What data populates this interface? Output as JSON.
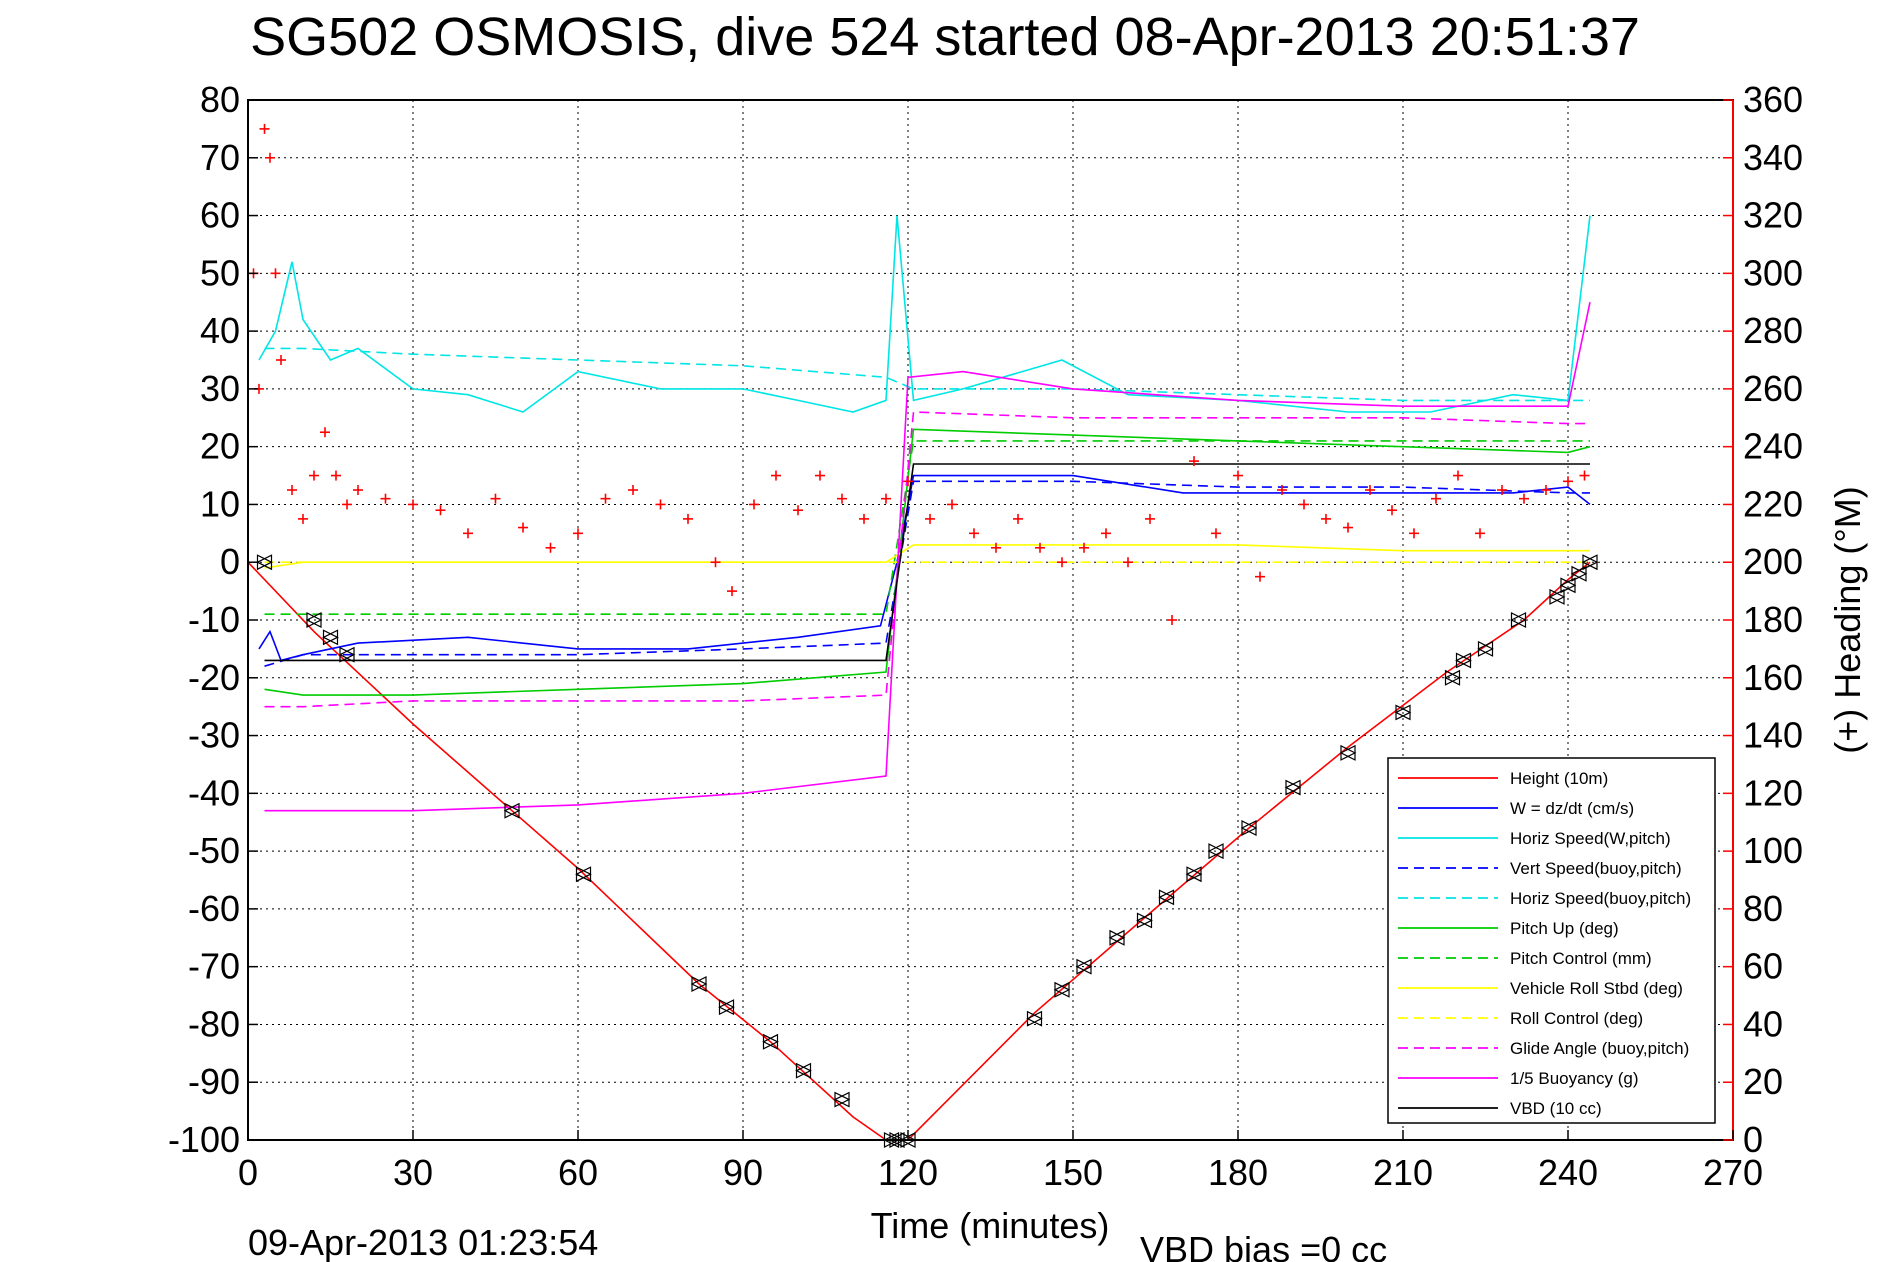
{
  "chart_data": {
    "type": "line",
    "title": "SG502 OSMOSIS, dive 524 started 08-Apr-2013 20:51:37",
    "xlabel": "Time (minutes)",
    "ylabel_right": "(+) Heading (°M)",
    "footer_left": "09-Apr-2013 01:23:54",
    "footer_right": "VBD bias =0 cc",
    "xlim": [
      0,
      270
    ],
    "ylim": [
      -100,
      80
    ],
    "ylim_right": [
      0,
      360
    ],
    "x_ticks": [
      "0",
      "30",
      "60",
      "90",
      "120",
      "150",
      "180",
      "210",
      "240",
      "270"
    ],
    "y_ticks": [
      "80",
      "70",
      "60",
      "50",
      "40",
      "30",
      "20",
      "10",
      "0",
      "-10",
      "-20",
      "-30",
      "-40",
      "-50",
      "-60",
      "-70",
      "-80",
      "-90",
      "-100"
    ],
    "y_ticks_right": [
      "360",
      "340",
      "320",
      "300",
      "280",
      "260",
      "240",
      "220",
      "200",
      "180",
      "160",
      "140",
      "120",
      "100",
      "80",
      "60",
      "40",
      "20",
      "0"
    ],
    "grid": true,
    "legend_position": "bottom-right",
    "colors": {
      "heading": "#ff0000",
      "right_axis": "#ff0000"
    },
    "series": [
      {
        "name": "Height (10m)",
        "color": "#ff0000",
        "dash": "solid",
        "x": [
          0,
          12,
          30,
          48,
          60,
          82,
          95,
          110,
          116,
          120,
          143,
          160,
          182,
          200,
          218,
          232,
          240,
          244
        ],
        "y": [
          0,
          -12,
          -28,
          -43,
          -53,
          -73,
          -83,
          -96,
          -100,
          -100,
          -78,
          -64,
          -46,
          -32,
          -19,
          -10,
          -3,
          0
        ]
      },
      {
        "name": "W = dz/dt (cm/s)",
        "color": "#0000ff",
        "dash": "solid",
        "x": [
          2,
          4,
          6,
          10,
          20,
          40,
          60,
          80,
          100,
          115,
          118,
          121,
          130,
          150,
          170,
          190,
          210,
          230,
          240,
          244
        ],
        "y": [
          -15,
          -12,
          -17,
          -16,
          -14,
          -13,
          -15,
          -15,
          -13,
          -11,
          0,
          15,
          15,
          15,
          12,
          12,
          12,
          12,
          13,
          10
        ]
      },
      {
        "name": "Horiz Speed(W,pitch)",
        "color": "#00e5e5",
        "dash": "solid",
        "x": [
          2,
          5,
          8,
          10,
          15,
          20,
          30,
          40,
          50,
          60,
          75,
          90,
          100,
          110,
          116,
          118,
          121,
          130,
          148,
          160,
          180,
          200,
          215,
          230,
          240,
          244
        ],
        "y": [
          35,
          40,
          52,
          42,
          35,
          37,
          30,
          29,
          26,
          33,
          30,
          30,
          28,
          26,
          28,
          60,
          28,
          30,
          35,
          29,
          28,
          26,
          26,
          29,
          28,
          60
        ]
      },
      {
        "name": "Vert Speed(buoy,pitch)",
        "color": "#0000ff",
        "dash": "dashed",
        "x": [
          3,
          10,
          30,
          60,
          90,
          116,
          121,
          150,
          180,
          210,
          240,
          244
        ],
        "y": [
          -18,
          -16,
          -16,
          -16,
          -15,
          -14,
          14,
          14,
          13,
          13,
          12,
          12
        ]
      },
      {
        "name": "Horiz Speed(buoy,pitch)",
        "color": "#00e5e5",
        "dash": "dashed",
        "x": [
          3,
          10,
          30,
          60,
          90,
          116,
          121,
          150,
          180,
          210,
          240,
          244
        ],
        "y": [
          37,
          37,
          36,
          35,
          34,
          32,
          30,
          30,
          29,
          28,
          28,
          28
        ]
      },
      {
        "name": "Pitch Up (deg)",
        "color": "#00cc00",
        "dash": "solid",
        "x": [
          3,
          10,
          30,
          60,
          90,
          116,
          121,
          150,
          180,
          210,
          240,
          244
        ],
        "y": [
          -22,
          -23,
          -23,
          -22,
          -21,
          -19,
          23,
          22,
          21,
          20,
          19,
          20
        ]
      },
      {
        "name": "Pitch Control (mm)",
        "color": "#00cc00",
        "dash": "dashed",
        "x": [
          3,
          116,
          121,
          244
        ],
        "y": [
          -9,
          -9,
          21,
          21
        ]
      },
      {
        "name": "Vehicle Roll Stbd (deg)",
        "color": "#ffff00",
        "dash": "solid",
        "x": [
          3,
          10,
          30,
          60,
          90,
          116,
          121,
          150,
          180,
          210,
          240,
          244
        ],
        "y": [
          -1,
          0,
          0,
          0,
          0,
          0,
          3,
          3,
          3,
          2,
          2,
          2
        ]
      },
      {
        "name": "Roll Control (deg)",
        "color": "#ffff00",
        "dash": "dashed",
        "x": [
          3,
          116,
          121,
          244
        ],
        "y": [
          0,
          0,
          0,
          0
        ]
      },
      {
        "name": "Glide Angle (buoy,pitch)",
        "color": "#ff00ff",
        "dash": "dashed",
        "x": [
          3,
          10,
          30,
          60,
          90,
          116,
          121,
          150,
          180,
          210,
          240,
          244
        ],
        "y": [
          -25,
          -25,
          -24,
          -24,
          -24,
          -23,
          26,
          25,
          25,
          25,
          24,
          24
        ]
      },
      {
        "name": "1/5 Buoyancy (g)",
        "color": "#ff00ff",
        "dash": "solid",
        "x": [
          3,
          30,
          60,
          90,
          116,
          120,
          130,
          150,
          180,
          210,
          240,
          244
        ],
        "y": [
          -43,
          -43,
          -42,
          -40,
          -37,
          32,
          33,
          30,
          28,
          27,
          27,
          45
        ]
      },
      {
        "name": "VBD (10 cc)",
        "color": "#000000",
        "dash": "solid",
        "x": [
          3,
          116,
          121,
          244
        ],
        "y": [
          -17,
          -17,
          17,
          17
        ]
      }
    ],
    "heading_series": {
      "name": "(+) Heading (°M)",
      "x": [
        1,
        2,
        3,
        4,
        5,
        6,
        8,
        10,
        12,
        14,
        16,
        18,
        20,
        25,
        30,
        35,
        40,
        45,
        50,
        55,
        60,
        65,
        70,
        75,
        80,
        85,
        88,
        92,
        96,
        100,
        104,
        108,
        112,
        116,
        120,
        124,
        128,
        132,
        136,
        140,
        144,
        148,
        152,
        156,
        160,
        164,
        168,
        172,
        176,
        180,
        184,
        188,
        192,
        196,
        200,
        204,
        208,
        212,
        216,
        220,
        224,
        228,
        232,
        236,
        240,
        243
      ],
      "y": [
        300,
        260,
        350,
        340,
        300,
        270,
        225,
        215,
        230,
        245,
        230,
        220,
        225,
        222,
        220,
        218,
        210,
        222,
        212,
        205,
        210,
        222,
        225,
        220,
        215,
        200,
        190,
        220,
        230,
        218,
        230,
        222,
        215,
        222,
        228,
        215,
        220,
        210,
        205,
        215,
        205,
        200,
        205,
        210,
        200,
        215,
        180,
        235,
        210,
        230,
        195,
        225,
        220,
        215,
        212,
        225,
        218,
        210,
        222,
        230,
        210,
        225,
        222,
        225,
        228,
        230
      ]
    },
    "markers": {
      "name": "Height samples",
      "x": [
        3,
        12,
        15,
        18,
        48,
        61,
        82,
        87,
        95,
        101,
        108,
        117,
        118,
        120,
        143,
        148,
        152,
        158,
        163,
        167,
        172,
        176,
        182,
        190,
        200,
        210,
        219,
        221,
        225,
        231,
        238,
        240,
        242,
        244
      ],
      "y": [
        0,
        -10,
        -13,
        -16,
        -43,
        -54,
        -73,
        -77,
        -83,
        -88,
        -93,
        -100,
        -100,
        -100,
        -79,
        -74,
        -70,
        -65,
        -62,
        -58,
        -54,
        -50,
        -46,
        -39,
        -33,
        -26,
        -20,
        -17,
        -15,
        -10,
        -6,
        -4,
        -2,
        0
      ]
    }
  }
}
